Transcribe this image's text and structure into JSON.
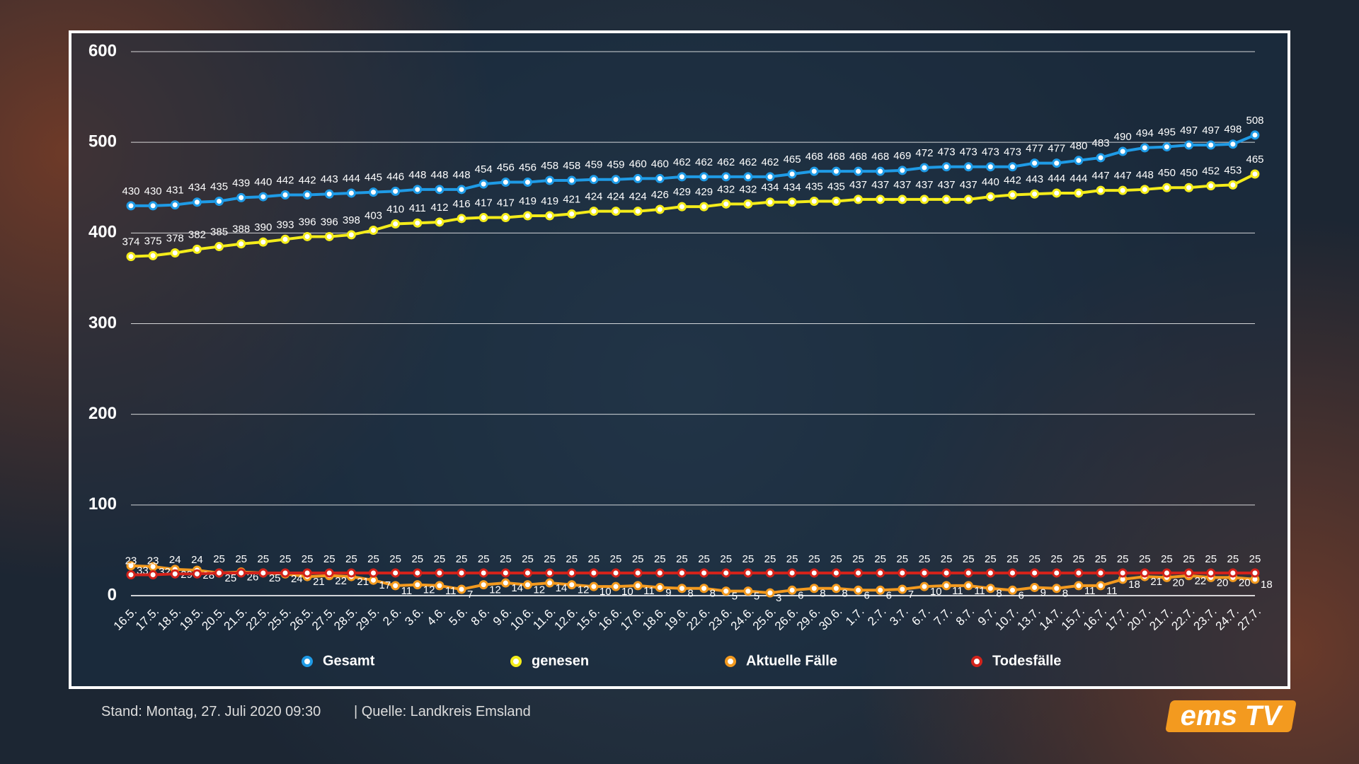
{
  "chart_data": {
    "type": "line",
    "categories": [
      "16.5.",
      "17.5.",
      "18.5.",
      "19.5.",
      "20.5.",
      "21.5.",
      "22.5.",
      "25.5.",
      "26.5.",
      "27.5.",
      "28.5.",
      "29.5.",
      "2.6.",
      "3.6.",
      "4.6.",
      "5.6.",
      "8.6.",
      "9.6.",
      "10.6.",
      "11.6.",
      "12.6.",
      "15.6.",
      "16.6.",
      "17.6.",
      "18.6.",
      "19.6.",
      "22.6.",
      "23.6.",
      "24.6.",
      "25.6.",
      "26.6.",
      "29.6.",
      "30.6.",
      "1.7.",
      "2.7.",
      "3.7.",
      "6.7.",
      "7.7.",
      "8.7.",
      "9.7.",
      "10.7.",
      "13.7.",
      "14.7.",
      "15.7.",
      "16.7.",
      "17.7.",
      "20.7.",
      "21.7.",
      "22.7.",
      "23.7.",
      "24.7.",
      "27.7."
    ],
    "series": [
      {
        "name": "Gesamt",
        "color": "#1f9be6",
        "values": [
          430,
          430,
          431,
          434,
          435,
          439,
          440,
          442,
          442,
          443,
          444,
          445,
          446,
          448,
          448,
          448,
          454,
          456,
          456,
          458,
          458,
          459,
          459,
          460,
          460,
          462,
          462,
          462,
          462,
          462,
          465,
          468,
          468,
          468,
          468,
          469,
          472,
          473,
          473,
          473,
          473,
          477,
          477,
          480,
          483,
          490,
          494,
          495,
          497,
          497,
          498,
          508
        ]
      },
      {
        "name": "genesen",
        "color": "#f4ec1a",
        "values": [
          374,
          375,
          378,
          382,
          385,
          388,
          390,
          393,
          396,
          396,
          398,
          403,
          410,
          411,
          412,
          416,
          417,
          417,
          419,
          419,
          421,
          424,
          424,
          424,
          426,
          429,
          429,
          432,
          432,
          434,
          434,
          435,
          435,
          437,
          437,
          437,
          437,
          437,
          437,
          440,
          442,
          443,
          444,
          444,
          447,
          447,
          448,
          450,
          450,
          452,
          453,
          465
        ]
      },
      {
        "name": "Aktuelle Fälle",
        "color": "#f39a1f",
        "values": [
          33,
          32,
          29,
          28,
          25,
          26,
          25,
          24,
          21,
          22,
          21,
          17,
          11,
          12,
          11,
          7,
          12,
          14,
          12,
          14,
          12,
          10,
          10,
          11,
          9,
          8,
          8,
          5,
          5,
          3,
          6,
          8,
          8,
          6,
          6,
          7,
          10,
          11,
          11,
          8,
          6,
          9,
          8,
          11,
          11,
          18,
          21,
          20,
          22,
          20,
          20,
          18
        ]
      },
      {
        "name": "Todesfälle",
        "color": "#d3231b",
        "values": [
          23,
          23,
          24,
          24,
          25,
          25,
          25,
          25,
          25,
          25,
          25,
          25,
          25,
          25,
          25,
          25,
          25,
          25,
          25,
          25,
          25,
          25,
          25,
          25,
          25,
          25,
          25,
          25,
          25,
          25,
          25,
          25,
          25,
          25,
          25,
          25,
          25,
          25,
          25,
          25,
          25,
          25,
          25,
          25,
          25,
          25,
          25,
          25,
          25,
          25,
          25,
          25
        ]
      }
    ],
    "ylim": [
      0,
      600
    ],
    "yticks": [
      0,
      100,
      200,
      300,
      400,
      500,
      600
    ],
    "grid": true,
    "legend": "bottom"
  },
  "footer": {
    "stand": "Stand:  Montag, 27. Juli 2020 09:30",
    "source": "|  Quelle:  Landkreis Emsland"
  },
  "logo": "ems TV"
}
